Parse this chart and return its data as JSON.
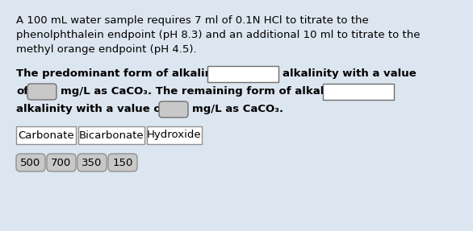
{
  "bg_color": "#dce6f0",
  "text_color": "#000000",
  "font_size": 9.5,
  "line1": "A 100 mL water sample requires 7 ml of 0.1N HCl to titrate to the",
  "line2": "phenolphthalein endpoint (pH 8.3) and an additional 10 ml to titrate to the",
  "line3": "methyl orange endpoint (pH 4.5).",
  "row1_pre": "The predominant form of alkalinity is",
  "row1_post": "alkalinity with a value",
  "row2_pre": "of",
  "row2_mid": "mg/L as CaCO₃. The remaining form of alkalinity is",
  "row3_pre": "alkalinity with a value of",
  "row3_post": "mg/L as CaCO₃.",
  "btn_labels": [
    "Carbonate",
    "Bicarbonate",
    "Hydroxide"
  ],
  "num_labels": [
    "500",
    "700",
    "350",
    "150"
  ],
  "box_fill_large": "#ffffff",
  "box_fill_small": "#c8c8c8",
  "box_fill_num": "#c8c8c8",
  "box_border": "#707070",
  "btn_border": "#909090"
}
